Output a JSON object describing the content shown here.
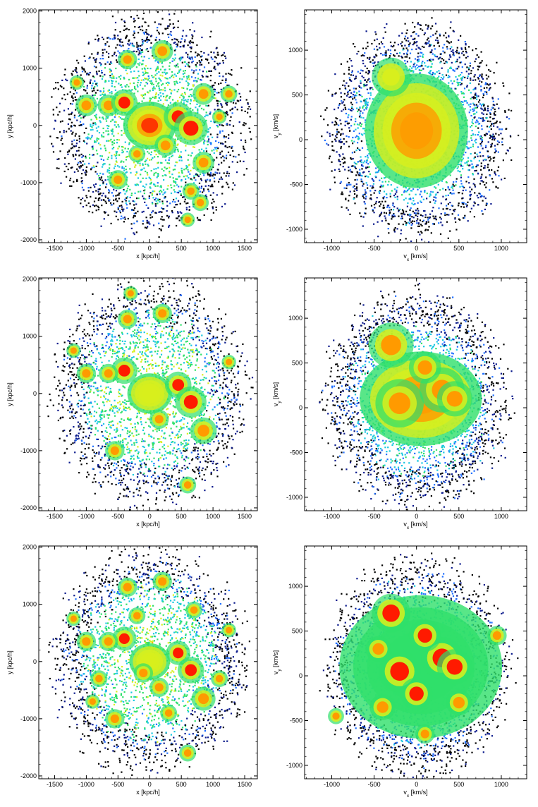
{
  "colors": {
    "colormap": [
      "#000000",
      "#0a1a8c",
      "#1f6fff",
      "#19c8e0",
      "#2fe06a",
      "#d8ef1d",
      "#ff9a00",
      "#ff1a00"
    ],
    "background": "#ffffff",
    "axes": "#000000"
  },
  "chart_data": [
    {
      "type": "heatmap",
      "panel": "position",
      "row": 1,
      "xlabel": "x [kpc/h]",
      "ylabel": "y [kpc/h]",
      "xlim": [
        -1750,
        1700
      ],
      "ylim": [
        -2050,
        2020
      ],
      "xticks": [
        -1500,
        -1000,
        -500,
        0,
        500,
        1000,
        1500
      ],
      "yticks": [
        -2000,
        -1000,
        0,
        1000,
        2000
      ],
      "xtick_labels": [
        "-1500",
        "-1000",
        "-500",
        "0",
        "500",
        "1000",
        "1500"
      ],
      "ytick_labels": [
        "-2000",
        "-1000",
        "0",
        "1000",
        "2000"
      ],
      "extent": {
        "xmin": -1450,
        "xmax": 1450,
        "ymin": -1800,
        "ymax": 1850
      },
      "core": {
        "x": 0,
        "y": 0,
        "rx": 260,
        "ry": 260,
        "level": 1.0
      },
      "halo_level": 0.45,
      "substructures": [
        {
          "x": 200,
          "y": 1300,
          "r": 90,
          "level": 0.9
        },
        {
          "x": -350,
          "y": 1150,
          "r": 80,
          "level": 0.85
        },
        {
          "x": -1000,
          "y": 350,
          "r": 90,
          "level": 0.9
        },
        {
          "x": -650,
          "y": 350,
          "r": 90,
          "level": 0.9
        },
        {
          "x": -400,
          "y": 400,
          "r": 110,
          "level": 0.95
        },
        {
          "x": 450,
          "y": 150,
          "r": 120,
          "level": 0.95
        },
        {
          "x": 650,
          "y": -50,
          "r": 140,
          "level": 0.95
        },
        {
          "x": 850,
          "y": 550,
          "r": 90,
          "level": 0.85
        },
        {
          "x": 1250,
          "y": 550,
          "r": 70,
          "level": 0.8
        },
        {
          "x": 250,
          "y": -350,
          "r": 90,
          "level": 0.9
        },
        {
          "x": 850,
          "y": -650,
          "r": 90,
          "level": 0.85
        },
        {
          "x": -500,
          "y": -950,
          "r": 80,
          "level": 0.85
        },
        {
          "x": 650,
          "y": -1150,
          "r": 70,
          "level": 0.8
        },
        {
          "x": 800,
          "y": -1350,
          "r": 70,
          "level": 0.8
        },
        {
          "x": 600,
          "y": -1650,
          "r": 60,
          "level": 0.8
        },
        {
          "x": -1150,
          "y": 750,
          "r": 60,
          "level": 0.8
        },
        {
          "x": -200,
          "y": -500,
          "r": 70,
          "level": 0.85
        },
        {
          "x": 1100,
          "y": 150,
          "r": 60,
          "level": 0.8
        }
      ],
      "speckle": 0.55
    },
    {
      "type": "heatmap",
      "panel": "velocity",
      "row": 1,
      "xlabel": "v_x [km/s]",
      "ylabel": "v_y [km/s]",
      "xlim": [
        -1320,
        1300
      ],
      "ylim": [
        -1150,
        1450
      ],
      "xticks": [
        -1000,
        -500,
        0,
        500,
        1000
      ],
      "yticks": [
        -1000,
        -500,
        0,
        500,
        1000
      ],
      "xtick_labels": [
        "-1000",
        "-500",
        "0",
        "500",
        "1000"
      ],
      "ytick_labels": [
        "-1000",
        "-500",
        "0",
        "500",
        "1000"
      ],
      "extent": {
        "xmin": -1050,
        "xmax": 1050,
        "ymin": -1050,
        "ymax": 1250
      },
      "core": {
        "x": 0,
        "y": 100,
        "rx": 380,
        "ry": 400,
        "level": 0.85
      },
      "halo_level": 0.35,
      "substructures": [
        {
          "x": -300,
          "y": 700,
          "r": 120,
          "level": 0.7
        }
      ],
      "speckle": 0.85
    },
    {
      "type": "heatmap",
      "panel": "position",
      "row": 2,
      "xlabel": "x [kpc/h]",
      "ylabel": "y [kpc/h]",
      "xlim": [
        -1750,
        1700
      ],
      "ylim": [
        -2050,
        2020
      ],
      "xticks": [
        -1500,
        -1000,
        -500,
        0,
        500,
        1000,
        1500
      ],
      "yticks": [
        -2000,
        -1000,
        0,
        1000,
        2000
      ],
      "xtick_labels": [
        "-1500",
        "-1000",
        "-500",
        "0",
        "500",
        "1000",
        "1500"
      ],
      "ytick_labels": [
        "-2000",
        "-1000",
        "0",
        "1000",
        "2000"
      ],
      "extent": {
        "xmin": -1450,
        "xmax": 1450,
        "ymin": -1850,
        "ymax": 1900
      },
      "core": {
        "x": 0,
        "y": 0,
        "rx": 220,
        "ry": 220,
        "level": 0.75
      },
      "halo_level": 0.45,
      "substructures": [
        {
          "x": -400,
          "y": 400,
          "r": 110,
          "level": 0.95
        },
        {
          "x": 450,
          "y": 150,
          "r": 110,
          "level": 0.95
        },
        {
          "x": 650,
          "y": -150,
          "r": 130,
          "level": 0.95
        },
        {
          "x": 850,
          "y": -650,
          "r": 110,
          "level": 0.9
        },
        {
          "x": -1000,
          "y": 350,
          "r": 80,
          "level": 0.9
        },
        {
          "x": -650,
          "y": 350,
          "r": 80,
          "level": 0.9
        },
        {
          "x": 200,
          "y": 1400,
          "r": 80,
          "level": 0.9
        },
        {
          "x": -350,
          "y": 1300,
          "r": 80,
          "level": 0.9
        },
        {
          "x": 150,
          "y": -450,
          "r": 80,
          "level": 0.9
        },
        {
          "x": -550,
          "y": -1000,
          "r": 80,
          "level": 0.9
        },
        {
          "x": 600,
          "y": -1600,
          "r": 70,
          "level": 0.85
        },
        {
          "x": -1200,
          "y": 750,
          "r": 60,
          "level": 0.85
        },
        {
          "x": 1250,
          "y": 550,
          "r": 60,
          "level": 0.85
        },
        {
          "x": -300,
          "y": 1750,
          "r": 60,
          "level": 0.8
        }
      ],
      "speckle": 0.6
    },
    {
      "type": "heatmap",
      "panel": "velocity",
      "row": 2,
      "xlabel": "v_x [km/s]",
      "ylabel": "v_y [km/s]",
      "xlim": [
        -1320,
        1300
      ],
      "ylim": [
        -1150,
        1450
      ],
      "xticks": [
        -1000,
        -500,
        0,
        500,
        1000
      ],
      "yticks": [
        -1000,
        -500,
        0,
        500,
        1000
      ],
      "xtick_labels": [
        "-1000",
        "-500",
        "0",
        "500",
        "1000"
      ],
      "ytick_labels": [
        "-1000",
        "-500",
        "0",
        "500",
        "1000"
      ],
      "extent": {
        "xmin": -1050,
        "xmax": 1050,
        "ymin": -1050,
        "ymax": 1250
      },
      "core": {
        "x": 50,
        "y": 100,
        "rx": 450,
        "ry": 330,
        "level": 0.8
      },
      "halo_level": 0.35,
      "substructures": [
        {
          "x": -300,
          "y": 700,
          "r": 140,
          "level": 0.8
        },
        {
          "x": 300,
          "y": 200,
          "r": 140,
          "level": 0.9
        },
        {
          "x": -200,
          "y": 50,
          "r": 150,
          "level": 0.85
        },
        {
          "x": 100,
          "y": 450,
          "r": 100,
          "level": 0.8
        },
        {
          "x": 450,
          "y": 100,
          "r": 110,
          "level": 0.85
        }
      ],
      "speckle": 0.75
    },
    {
      "type": "heatmap",
      "panel": "position",
      "row": 3,
      "xlabel": "x [kpc/h]",
      "ylabel": "y [kpc/h]",
      "xlim": [
        -1750,
        1700
      ],
      "ylim": [
        -2050,
        2020
      ],
      "xticks": [
        -1500,
        -1000,
        -500,
        0,
        500,
        1000,
        1500
      ],
      "yticks": [
        -2000,
        -1000,
        0,
        1000,
        2000
      ],
      "xtick_labels": [
        "-1500",
        "-1000",
        "-500",
        "0",
        "500",
        "1000",
        "1500"
      ],
      "ytick_labels": [
        "-2000",
        "-1000",
        "0",
        "1000",
        "2000"
      ],
      "extent": {
        "xmin": -1450,
        "xmax": 1450,
        "ymin": -1850,
        "ymax": 1900
      },
      "core": {
        "x": 0,
        "y": 0,
        "rx": 200,
        "ry": 200,
        "level": 0.65
      },
      "halo_level": 0.45,
      "substructures": [
        {
          "x": -400,
          "y": 400,
          "r": 100,
          "level": 0.95
        },
        {
          "x": 450,
          "y": 150,
          "r": 100,
          "level": 0.95
        },
        {
          "x": 650,
          "y": -150,
          "r": 110,
          "level": 0.95
        },
        {
          "x": 850,
          "y": -650,
          "r": 100,
          "level": 0.9
        },
        {
          "x": -1000,
          "y": 350,
          "r": 80,
          "level": 0.9
        },
        {
          "x": -650,
          "y": 350,
          "r": 80,
          "level": 0.9
        },
        {
          "x": 200,
          "y": 1400,
          "r": 80,
          "level": 0.9
        },
        {
          "x": -350,
          "y": 1300,
          "r": 80,
          "level": 0.9
        },
        {
          "x": 150,
          "y": -450,
          "r": 80,
          "level": 0.9
        },
        {
          "x": -550,
          "y": -1000,
          "r": 80,
          "level": 0.9
        },
        {
          "x": 600,
          "y": -1600,
          "r": 70,
          "level": 0.85
        },
        {
          "x": -1200,
          "y": 750,
          "r": 60,
          "level": 0.85
        },
        {
          "x": 1250,
          "y": 550,
          "r": 60,
          "level": 0.85
        },
        {
          "x": -100,
          "y": -200,
          "r": 80,
          "level": 0.9
        },
        {
          "x": 300,
          "y": -900,
          "r": 70,
          "level": 0.85
        },
        {
          "x": -800,
          "y": -300,
          "r": 70,
          "level": 0.85
        },
        {
          "x": 1100,
          "y": -300,
          "r": 70,
          "level": 0.85
        },
        {
          "x": -200,
          "y": 800,
          "r": 70,
          "level": 0.85
        },
        {
          "x": 700,
          "y": 900,
          "r": 70,
          "level": 0.85
        },
        {
          "x": -900,
          "y": -700,
          "r": 60,
          "level": 0.85
        }
      ],
      "speckle": 0.6
    },
    {
      "type": "heatmap",
      "panel": "velocity",
      "row": 3,
      "xlabel": "v_x [km/s]",
      "ylabel": "v_y [km/s]",
      "xlim": [
        -1320,
        1300
      ],
      "ylim": [
        -1150,
        1450
      ],
      "xticks": [
        -1000,
        -500,
        0,
        500,
        1000
      ],
      "yticks": [
        -1000,
        -500,
        0,
        500,
        1000
      ],
      "xtick_labels": [
        "-1000",
        "-500",
        "0",
        "500",
        "1000"
      ],
      "ytick_labels": [
        "-1000",
        "-500",
        "0",
        "500",
        "1000"
      ],
      "extent": {
        "xmin": -1050,
        "xmax": 1050,
        "ymin": -1050,
        "ymax": 1250
      },
      "core": {
        "x": 50,
        "y": 100,
        "rx": 600,
        "ry": 500,
        "level": 0.6
      },
      "halo_level": 0.3,
      "substructures": [
        {
          "x": -300,
          "y": 700,
          "r": 120,
          "level": 0.95
        },
        {
          "x": 300,
          "y": 200,
          "r": 130,
          "level": 0.95
        },
        {
          "x": -200,
          "y": 50,
          "r": 130,
          "level": 0.95
        },
        {
          "x": 100,
          "y": 450,
          "r": 100,
          "level": 0.95
        },
        {
          "x": 450,
          "y": 100,
          "r": 110,
          "level": 0.95
        },
        {
          "x": 0,
          "y": -200,
          "r": 100,
          "level": 0.95
        },
        {
          "x": -450,
          "y": 300,
          "r": 80,
          "level": 0.9
        },
        {
          "x": 950,
          "y": 450,
          "r": 60,
          "level": 0.9
        },
        {
          "x": 100,
          "y": -650,
          "r": 60,
          "level": 0.9
        },
        {
          "x": -950,
          "y": -450,
          "r": 50,
          "level": 0.9
        },
        {
          "x": 500,
          "y": -300,
          "r": 80,
          "level": 0.9
        },
        {
          "x": -400,
          "y": -350,
          "r": 80,
          "level": 0.9
        }
      ],
      "speckle": 0.5
    }
  ]
}
